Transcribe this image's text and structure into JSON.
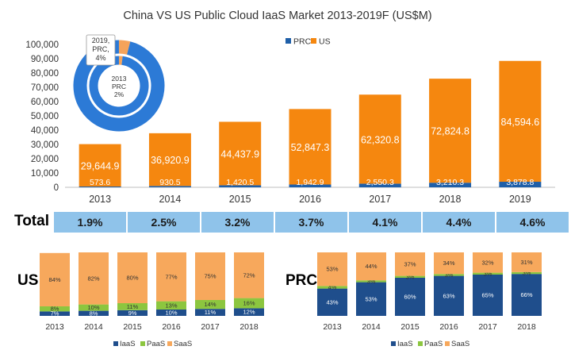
{
  "chart_data": [
    {
      "type": "bar",
      "title": "China VS US Public Cloud IaaS Market 2013-2019F (US$M)",
      "categories": [
        "2013",
        "2014",
        "2015",
        "2016",
        "2017",
        "2018",
        "2019"
      ],
      "stacked": true,
      "series": [
        {
          "name": "PRC",
          "color": "#1f5fa8",
          "values": [
            573.6,
            930.5,
            1420.5,
            1942.9,
            2550.3,
            3210.3,
            3878.8
          ],
          "labels": [
            "573.6",
            "930.5",
            "1,420.5",
            "1,942.9",
            "2,550.3",
            "3,210.3",
            "3,878.8"
          ]
        },
        {
          "name": "US",
          "color": "#f5870f",
          "values": [
            29644.9,
            36920.9,
            44437.9,
            52847.3,
            62320.8,
            72824.8,
            84594.6
          ],
          "labels": [
            "29,644.9",
            "36,920.9",
            "44,437.9",
            "52,847.3",
            "62,320.8",
            "72,824.8",
            "84,594.6"
          ]
        }
      ],
      "ylim": [
        0,
        100000
      ],
      "yticks": [
        0,
        10000,
        20000,
        30000,
        40000,
        50000,
        60000,
        70000,
        80000,
        90000,
        100000
      ],
      "ytick_labels": [
        "0",
        "10,000",
        "20,000",
        "30,000",
        "40,000",
        "50,000",
        "60,000",
        "70,000",
        "80,000",
        "90,000",
        "100,000"
      ],
      "legend": "top-center",
      "grid": false
    },
    {
      "type": "pie",
      "variant": "donut",
      "rings": [
        {
          "year": "2019",
          "slices": [
            {
              "name": "PRC",
              "value": 4
            },
            {
              "name": "US",
              "value": 96
            }
          ],
          "callout": [
            "2019,",
            "PRC,",
            "4%"
          ]
        },
        {
          "year": "2013",
          "slices": [
            {
              "name": "PRC",
              "value": 2
            },
            {
              "name": "US",
              "value": 98
            }
          ],
          "callout": [
            "2013",
            "PRC",
            "2%"
          ]
        }
      ],
      "colors": {
        "PRC": "#f5a35a",
        "US": "#2c7ad6"
      }
    },
    {
      "type": "table",
      "row_label": "Total",
      "columns": [
        "2013",
        "2014",
        "2015",
        "2016",
        "2017",
        "2018",
        "2019"
      ],
      "values": [
        "1.9%",
        "2.5%",
        "3.2%",
        "3.7%",
        "4.1%",
        "4.4%",
        "4.6%"
      ]
    },
    {
      "type": "bar",
      "stacked": true,
      "percent": true,
      "label": "US",
      "categories": [
        "2013",
        "2014",
        "2015",
        "2016",
        "2017",
        "2018"
      ],
      "series": [
        {
          "name": "IaaS",
          "color": "#1f4e8c",
          "values": [
            7,
            8,
            9,
            10,
            11,
            12
          ]
        },
        {
          "name": "PaaS",
          "color": "#8cc63f",
          "values": [
            8,
            10,
            11,
            13,
            14,
            16
          ]
        },
        {
          "name": "SaaS",
          "color": "#f7a85c",
          "values": [
            84,
            82,
            80,
            77,
            75,
            72
          ]
        }
      ],
      "legend": "bottom"
    },
    {
      "type": "bar",
      "stacked": true,
      "percent": true,
      "label": "PRC",
      "categories": [
        "2013",
        "2014",
        "2015",
        "2016",
        "2017",
        "2018"
      ],
      "series": [
        {
          "name": "IaaS",
          "color": "#1f4e8c",
          "values": [
            43,
            53,
            60,
            63,
            65,
            66
          ]
        },
        {
          "name": "PaaS",
          "color": "#8cc63f",
          "values": [
            4,
            3,
            3,
            3,
            3,
            3
          ]
        },
        {
          "name": "SaaS",
          "color": "#f7a85c",
          "values": [
            53,
            44,
            37,
            34,
            32,
            31
          ]
        }
      ],
      "legend": "bottom"
    }
  ]
}
